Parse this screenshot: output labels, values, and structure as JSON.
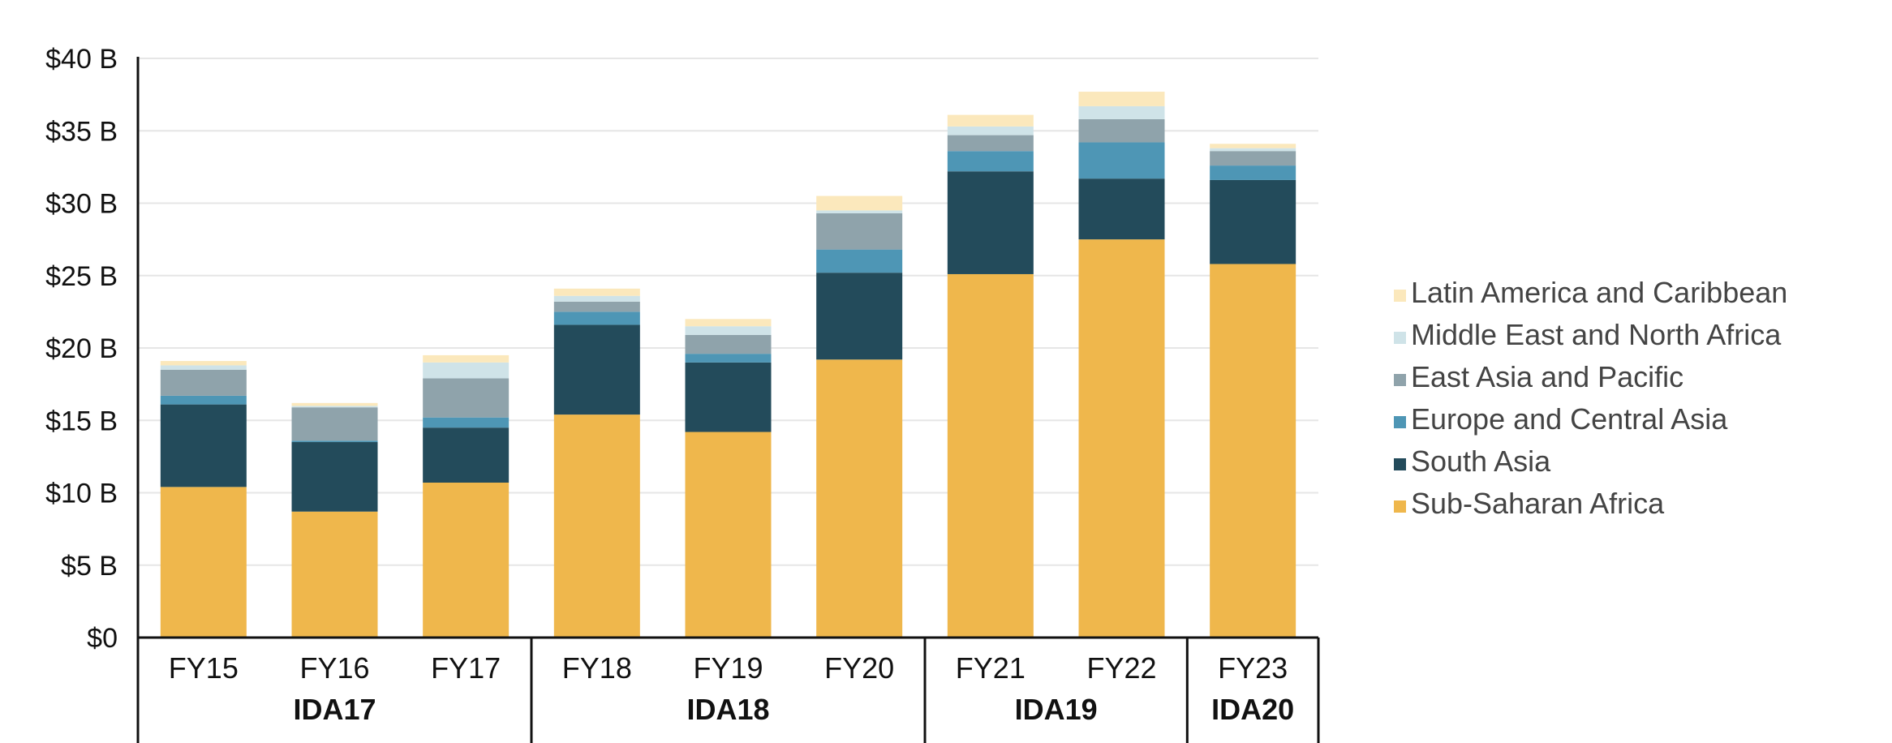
{
  "chart_data": {
    "type": "bar",
    "stacked": true,
    "title": "",
    "xlabel": "",
    "ylabel": "",
    "ylim": [
      0,
      40
    ],
    "y_ticks": [
      {
        "value": 0,
        "label": "$0"
      },
      {
        "value": 5,
        "label": "$5 B"
      },
      {
        "value": 10,
        "label": "$10 B"
      },
      {
        "value": 15,
        "label": "$15 B"
      },
      {
        "value": 20,
        "label": "$20 B"
      },
      {
        "value": 25,
        "label": "$25 B"
      },
      {
        "value": 30,
        "label": "$30 B"
      },
      {
        "value": 35,
        "label": "$35 B"
      },
      {
        "value": 40,
        "label": "$40 B"
      }
    ],
    "grid": true,
    "legend_position": "right",
    "categories": [
      "FY15",
      "FY16",
      "FY17",
      "FY18",
      "FY19",
      "FY20",
      "FY21",
      "FY22",
      "FY23"
    ],
    "groups": [
      {
        "label": "IDA17",
        "categories": [
          "FY15",
          "FY16",
          "FY17"
        ]
      },
      {
        "label": "IDA18",
        "categories": [
          "FY18",
          "FY19",
          "FY20"
        ]
      },
      {
        "label": "IDA19",
        "categories": [
          "FY21",
          "FY22"
        ]
      },
      {
        "label": "IDA20",
        "categories": [
          "FY23"
        ]
      }
    ],
    "series": [
      {
        "name": "Sub-Saharan Africa",
        "color": "#EFB74C",
        "values": [
          10.4,
          8.7,
          10.7,
          15.4,
          14.2,
          19.2,
          25.1,
          27.5,
          25.8
        ]
      },
      {
        "name": "South Asia",
        "color": "#234B5B",
        "values": [
          5.7,
          4.8,
          3.8,
          6.2,
          4.8,
          6.0,
          7.1,
          4.2,
          5.8
        ]
      },
      {
        "name": "Europe and Central Asia",
        "color": "#4E96B5",
        "values": [
          0.6,
          0.1,
          0.7,
          0.9,
          0.6,
          1.6,
          1.4,
          2.5,
          1.0
        ]
      },
      {
        "name": "East Asia and Pacific",
        "color": "#8FA3AB",
        "values": [
          1.8,
          2.3,
          2.7,
          0.7,
          1.3,
          2.5,
          1.1,
          1.6,
          1.0
        ]
      },
      {
        "name": "Middle East and North Africa",
        "color": "#CFE3E8",
        "values": [
          0.3,
          0.1,
          1.1,
          0.4,
          0.6,
          0.2,
          0.6,
          0.9,
          0.2
        ]
      },
      {
        "name": "Latin America and Caribbean",
        "color": "#FBE8BC",
        "values": [
          0.3,
          0.2,
          0.5,
          0.5,
          0.5,
          1.0,
          0.8,
          1.0,
          0.3
        ]
      }
    ],
    "legend_order": [
      "Latin America and Caribbean",
      "Middle East and North Africa",
      "East Asia and Pacific",
      "Europe and Central Asia",
      "South Asia",
      "Sub-Saharan Africa"
    ]
  }
}
